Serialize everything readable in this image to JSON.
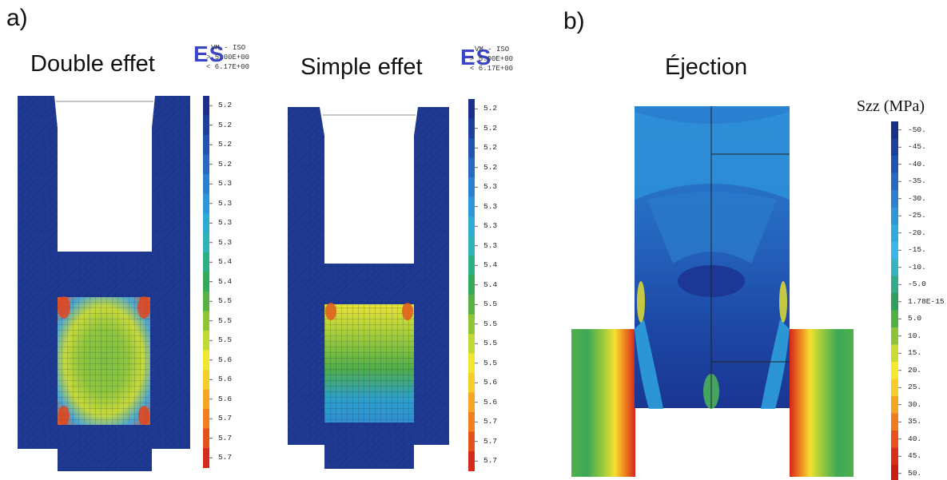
{
  "panels": {
    "a": {
      "letter": "a)",
      "left_plot": {
        "title": "Double effet",
        "field": "ES",
        "header_lines": [
          "VM - ISO",
          "> 5.00E+00",
          "< 6.17E+00"
        ],
        "scale_labels": [
          "5.2",
          "5.2",
          "5.2",
          "5.2",
          "5.3",
          "5.3",
          "5.3",
          "5.3",
          "5.4",
          "5.4",
          "5.5",
          "5.5",
          "5.5",
          "5.6",
          "5.6",
          "5.6",
          "5.7",
          "5.7",
          "5.7"
        ]
      },
      "right_plot": {
        "title": "Simple effet",
        "field": "ES",
        "header_lines": [
          "VM - ISO",
          "> 5.00E+00",
          "< 6.17E+00"
        ],
        "scale_labels": [
          "5.2",
          "5.2",
          "5.2",
          "5.2",
          "5.3",
          "5.3",
          "5.3",
          "5.3",
          "5.4",
          "5.4",
          "5.5",
          "5.5",
          "5.5",
          "5.5",
          "5.6",
          "5.6",
          "5.7",
          "5.7",
          "5.7"
        ]
      }
    },
    "b": {
      "letter": "b)",
      "title": "Éjection",
      "colorbar_title": "Szz (MPa)",
      "scale_labels": [
        "-50.",
        "-45.",
        "-40.",
        "-35.",
        "-30.",
        "-25.",
        "-20.",
        "-15.",
        "-10.",
        "-5.0",
        "1.78E-15",
        "5.0",
        "10.",
        "15.",
        "20.",
        "25.",
        "30.",
        "35.",
        "40.",
        "45.",
        "50."
      ]
    }
  },
  "colors": {
    "mesh_blue": "#1f3a93",
    "scale_a": [
      "#1a2f8a",
      "#1d3f9e",
      "#2154b0",
      "#2569c0",
      "#2a7fd0",
      "#2e95d8",
      "#30a8d6",
      "#2fb3b8",
      "#2fae86",
      "#33a95a",
      "#54b243",
      "#8cc43a",
      "#c2d835",
      "#f0e830",
      "#f7cd2a",
      "#f6a524",
      "#f07f20",
      "#e4521c",
      "#d62a18"
    ],
    "scale_b": [
      "#1a2f8a",
      "#1d3f9e",
      "#2154b0",
      "#2569c0",
      "#2a7fd0",
      "#2e95d8",
      "#30a8e0",
      "#3ab6e6",
      "#34b3c0",
      "#33ab8a",
      "#2ea05a",
      "#50b043",
      "#8cc43a",
      "#c8dc35",
      "#f3ea2f",
      "#f8cc2a",
      "#f6a424",
      "#f07c20",
      "#e6521c",
      "#d83018",
      "#c81d16"
    ]
  }
}
